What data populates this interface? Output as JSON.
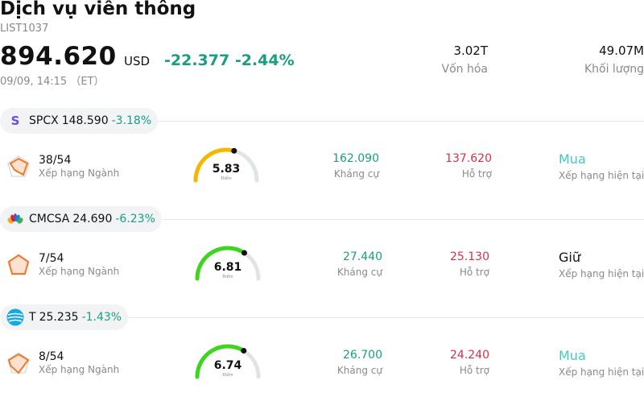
{
  "header": {
    "title": "Dịch vụ viễn thông",
    "code": "LIST1037",
    "price": "894.620",
    "currency": "USD",
    "change": "-22.377 -2.44%",
    "time": "09/09, 14:15 （ET）",
    "stats": [
      {
        "value": "3.02T",
        "label": "Vốn hóa"
      },
      {
        "value": "49.07M",
        "label": "Khối lượng"
      }
    ]
  },
  "stocks": [
    {
      "symbol": "SPCX",
      "price": "148.590",
      "change": "-3.18%",
      "logo_icon": "s-letter-icon",
      "logo_letter": "S",
      "rank": "38/54",
      "rank_label": "Xếp hạng Ngành",
      "score": "5.83",
      "score_fraction": 0.583,
      "score_color": "#f5b800",
      "score_caption": "Điểm",
      "resistance": "162.090",
      "resistance_label": "Kháng cự",
      "support": "137.620",
      "support_label": "Hỗ trợ",
      "rating": "Mua",
      "rating_label": "Xếp hạng hiện tại"
    },
    {
      "symbol": "CMCSA",
      "price": "24.690",
      "change": "-6.23%",
      "logo_icon": "peacock-icon",
      "logo_letter": "",
      "rank": "7/54",
      "rank_label": "Xếp hạng Ngành",
      "score": "6.81",
      "score_fraction": 0.681,
      "score_color": "#3ed61c",
      "score_caption": "Điểm",
      "resistance": "27.440",
      "resistance_label": "Kháng cự",
      "support": "25.130",
      "support_label": "Hỗ trợ",
      "rating": "Giữ",
      "rating_label": "Xếp hạng hiện tại"
    },
    {
      "symbol": "T",
      "price": "25.235",
      "change": "-1.43%",
      "logo_icon": "att-globe-icon",
      "logo_letter": "",
      "rank": "8/54",
      "rank_label": "Xếp hạng Ngành",
      "score": "6.74",
      "score_fraction": 0.674,
      "score_color": "#3ed61c",
      "score_caption": "Điểm",
      "resistance": "26.700",
      "resistance_label": "Kháng cự",
      "support": "24.240",
      "support_label": "Hỗ trợ",
      "rating": "Mua",
      "rating_label": "Xếp hạng hiện tại"
    }
  ]
}
